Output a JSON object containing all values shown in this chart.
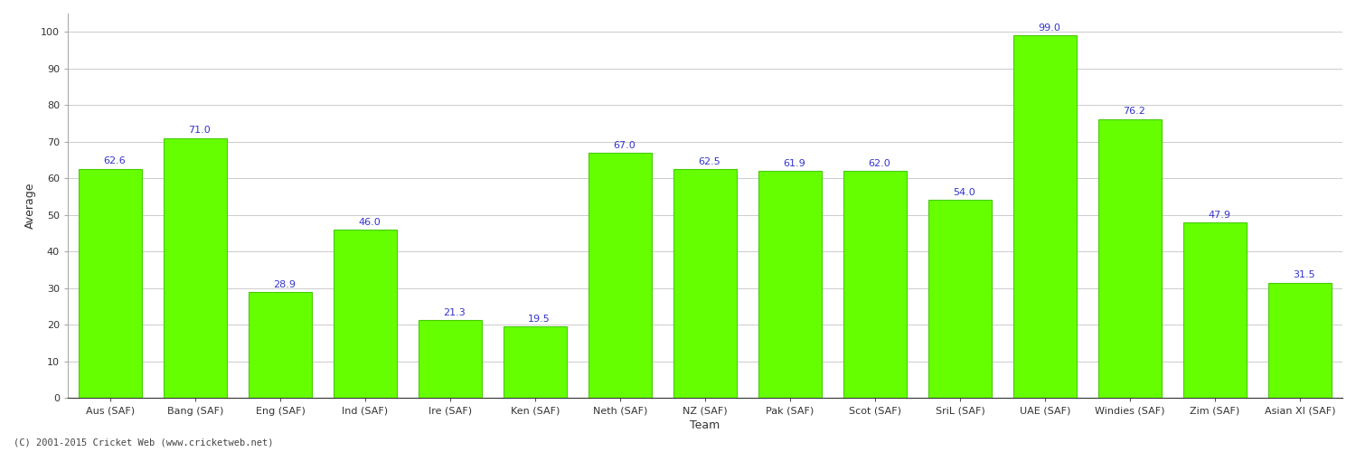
{
  "categories": [
    "Aus (SAF)",
    "Bang (SAF)",
    "Eng (SAF)",
    "Ind (SAF)",
    "Ire (SAF)",
    "Ken (SAF)",
    "Neth (SAF)",
    "NZ (SAF)",
    "Pak (SAF)",
    "Scot (SAF)",
    "SriL (SAF)",
    "UAE (SAF)",
    "Windies (SAF)",
    "Zim (SAF)",
    "Asian XI (SAF)"
  ],
  "values": [
    62.6,
    71.0,
    28.9,
    46.0,
    21.3,
    19.5,
    67.0,
    62.5,
    61.9,
    62.0,
    54.0,
    99.0,
    76.2,
    47.9,
    31.5
  ],
  "bar_color": "#66ff00",
  "bar_edge_color": "#44cc00",
  "xlabel": "Team",
  "ylabel": "Average",
  "ylim": [
    0,
    105
  ],
  "yticks": [
    0,
    10,
    20,
    30,
    40,
    50,
    60,
    70,
    80,
    90,
    100
  ],
  "label_color": "#3333cc",
  "label_fontsize": 8,
  "axis_tick_fontsize": 8,
  "xlabel_fontsize": 9,
  "ylabel_fontsize": 9,
  "grid_color": "#cccccc",
  "background_color": "#ffffff",
  "footer_text": "(C) 2001-2015 Cricket Web (www.cricketweb.net)"
}
